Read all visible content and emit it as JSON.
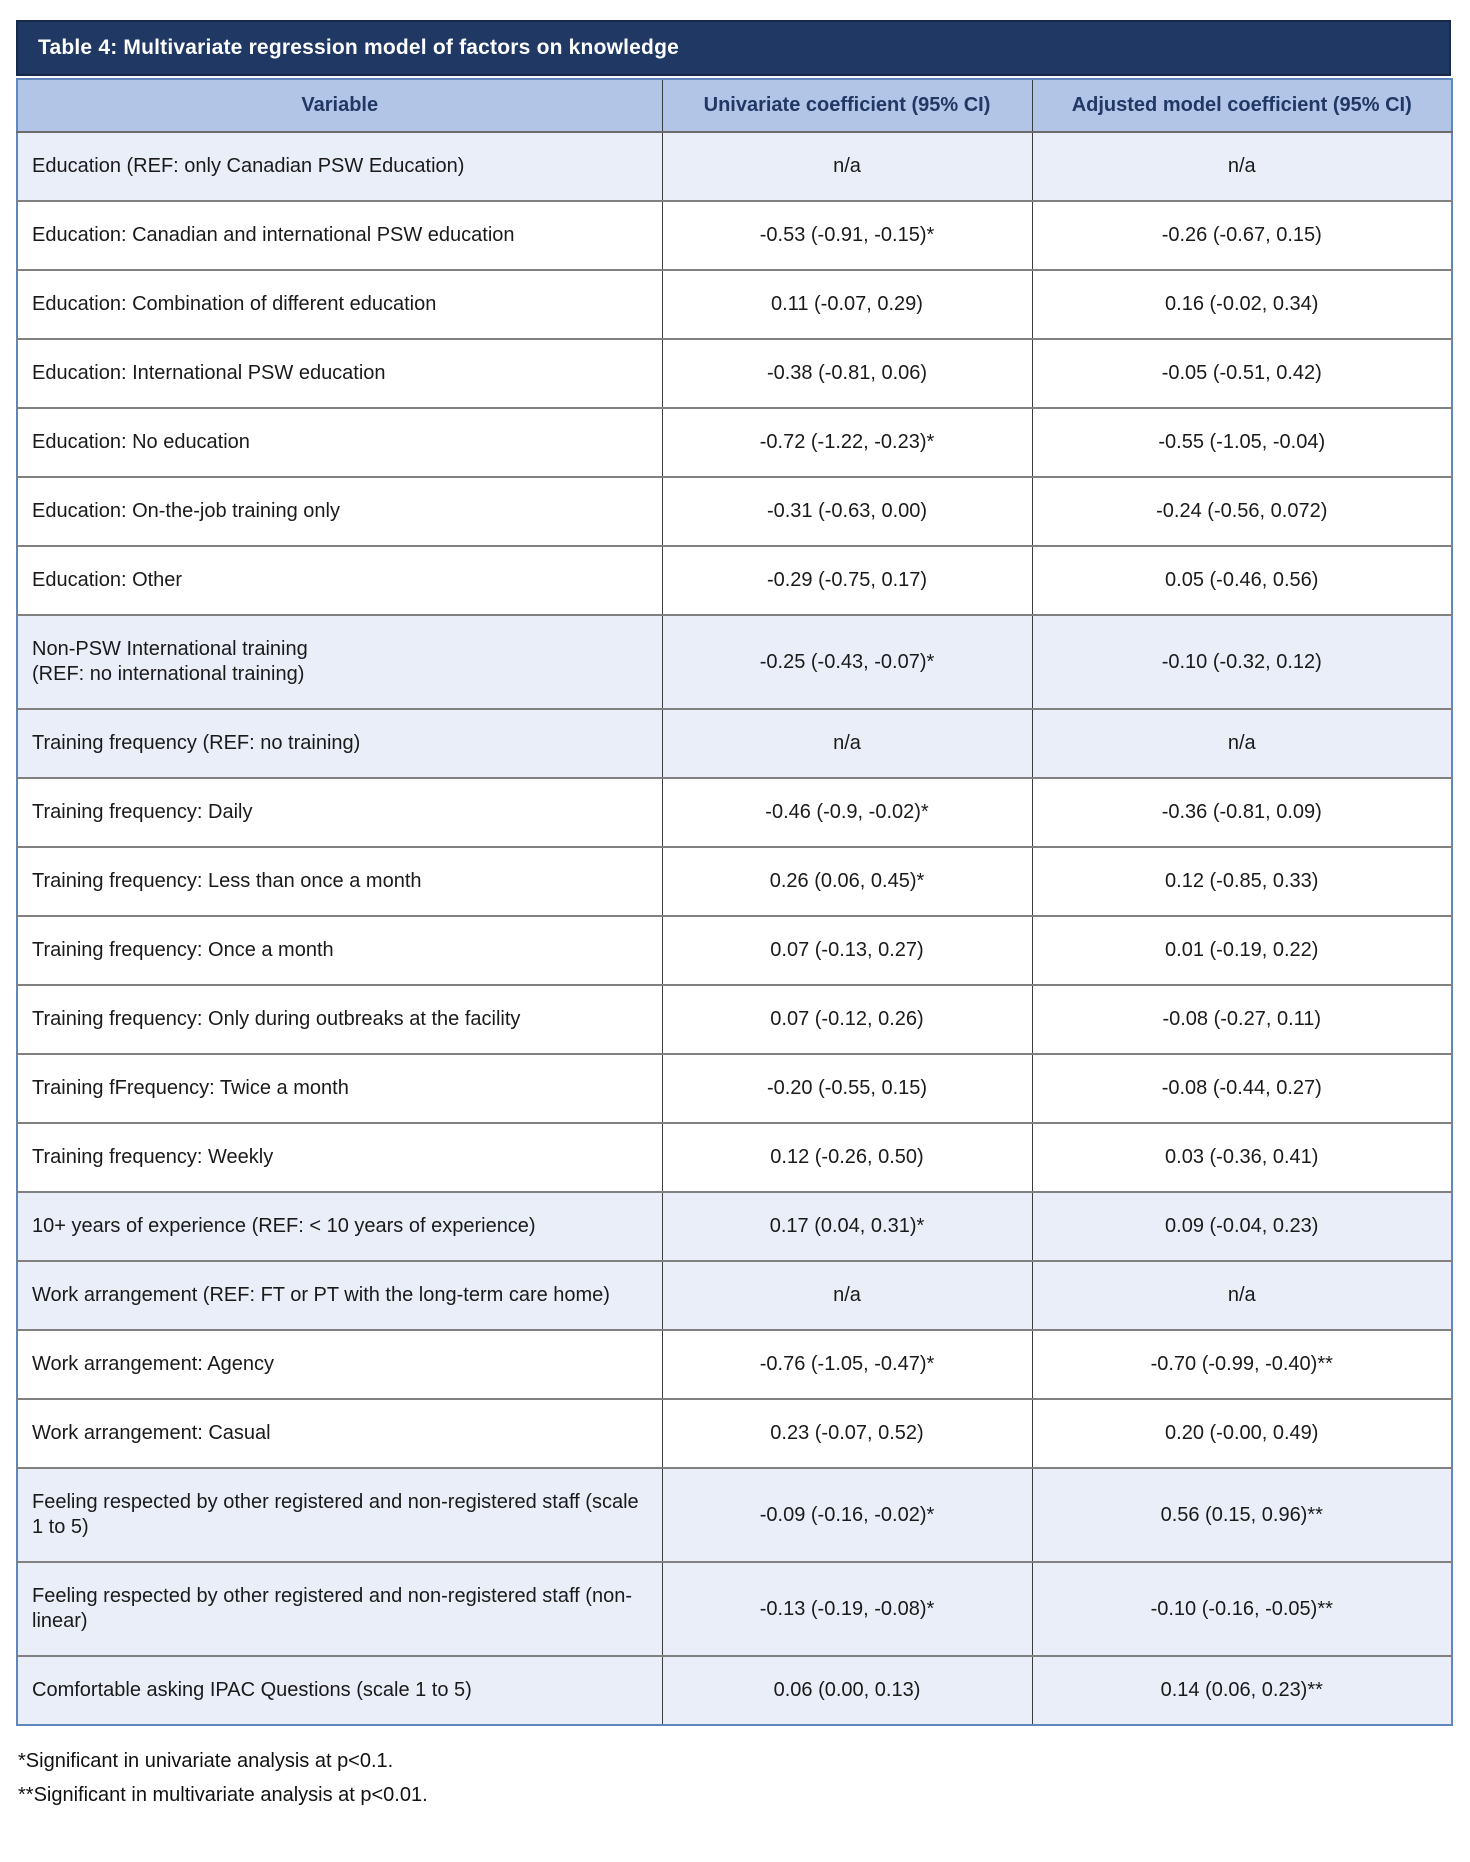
{
  "table": {
    "title": "Table 4: Multivariate regression model of factors on knowledge",
    "columns": [
      "Variable",
      "Univariate coefficient (95% CI)",
      "Adjusted model coefficient (95% CI)"
    ],
    "rows": [
      {
        "variable": "Education (REF: only Canadian PSW Education)",
        "univariate": "n/a",
        "adjusted": "n/a",
        "shaded": true
      },
      {
        "variable": "Education: Canadian and international PSW education",
        "univariate": "-0.53 (-0.91, -0.15)*",
        "adjusted": "-0.26 (-0.67, 0.15)",
        "shaded": false
      },
      {
        "variable": "Education: Combination of different education",
        "univariate": "0.11 (-0.07, 0.29)",
        "adjusted": "0.16 (-0.02, 0.34)",
        "shaded": false
      },
      {
        "variable": "Education: International PSW education",
        "univariate": "-0.38 (-0.81, 0.06)",
        "adjusted": "-0.05 (-0.51, 0.42)",
        "shaded": false
      },
      {
        "variable": "Education: No education",
        "univariate": "-0.72 (-1.22, -0.23)*",
        "adjusted": "-0.55 (-1.05, -0.04)",
        "shaded": false
      },
      {
        "variable": "Education: On-the-job training only",
        "univariate": "-0.31 (-0.63, 0.00)",
        "adjusted": "-0.24 (-0.56, 0.072)",
        "shaded": false
      },
      {
        "variable": "Education: Other",
        "univariate": "-0.29 (-0.75, 0.17)",
        "adjusted": "0.05 (-0.46, 0.56)",
        "shaded": false
      },
      {
        "variable": "Non-PSW International training\n(REF: no international training)",
        "univariate": "-0.25 (-0.43, -0.07)*",
        "adjusted": "-0.10 (-0.32, 0.12)",
        "shaded": true
      },
      {
        "variable": "Training frequency (REF: no training)",
        "univariate": "n/a",
        "adjusted": "n/a",
        "shaded": true
      },
      {
        "variable": "Training frequency: Daily",
        "univariate": "-0.46 (-0.9, -0.02)*",
        "adjusted": "-0.36 (-0.81, 0.09)",
        "shaded": false
      },
      {
        "variable": "Training frequency: Less than once a month",
        "univariate": "0.26 (0.06, 0.45)*",
        "adjusted": "0.12 (-0.85, 0.33)",
        "shaded": false
      },
      {
        "variable": "Training frequency: Once a month",
        "univariate": "0.07 (-0.13, 0.27)",
        "adjusted": "0.01 (-0.19, 0.22)",
        "shaded": false
      },
      {
        "variable": "Training frequency: Only during outbreaks at the facility",
        "univariate": "0.07 (-0.12, 0.26)",
        "adjusted": "-0.08 (-0.27, 0.11)",
        "shaded": false
      },
      {
        "variable": "Training fFrequency: Twice a month",
        "univariate": "-0.20 (-0.55, 0.15)",
        "adjusted": "-0.08 (-0.44, 0.27)",
        "shaded": false
      },
      {
        "variable": "Training frequency: Weekly",
        "univariate": "0.12 (-0.26, 0.50)",
        "adjusted": "0.03 (-0.36, 0.41)",
        "shaded": false
      },
      {
        "variable": "10+ years of experience (REF: < 10 years of experience)",
        "univariate": "0.17 (0.04, 0.31)*",
        "adjusted": "0.09 (-0.04, 0.23)",
        "shaded": true
      },
      {
        "variable": "Work arrangement (REF: FT or PT with the long-term care home)",
        "univariate": "n/a",
        "adjusted": "n/a",
        "shaded": true
      },
      {
        "variable": "Work arrangement: Agency",
        "univariate": "-0.76 (-1.05, -0.47)*",
        "adjusted": "-0.70 (-0.99, -0.40)**",
        "shaded": false
      },
      {
        "variable": "Work arrangement: Casual",
        "univariate": "0.23 (-0.07, 0.52)",
        "adjusted": "0.20 (-0.00, 0.49)",
        "shaded": false
      },
      {
        "variable": "Feeling respected by other registered and non-registered staff (scale 1 to 5)",
        "univariate": "-0.09 (-0.16, -0.02)*",
        "adjusted": "0.56 (0.15, 0.96)**",
        "shaded": true
      },
      {
        "variable": "Feeling respected by other registered and non-registered staff (non-linear)",
        "univariate": "-0.13 (-0.19, -0.08)*",
        "adjusted": "-0.10 (-0.16, -0.05)**",
        "shaded": true
      },
      {
        "variable": "Comfortable asking IPAC Questions (scale 1 to 5)",
        "univariate": "0.06 (0.00, 0.13)",
        "adjusted": "0.14 (0.06, 0.23)**",
        "shaded": true
      }
    ],
    "footnotes": [
      "*Significant in univariate analysis at p<0.1.",
      "**Significant in multivariate analysis at p<0.01."
    ],
    "colors": {
      "title_bg": "#1f3864",
      "title_text": "#ffffff",
      "header_bg": "#b3c5e6",
      "header_text": "#1f3864",
      "shaded_row_bg": "#eaeef8",
      "row_bg": "#ffffff",
      "outer_border": "#5e87bd",
      "row_border": "#808080",
      "column_border": "#3c3c3c"
    }
  }
}
